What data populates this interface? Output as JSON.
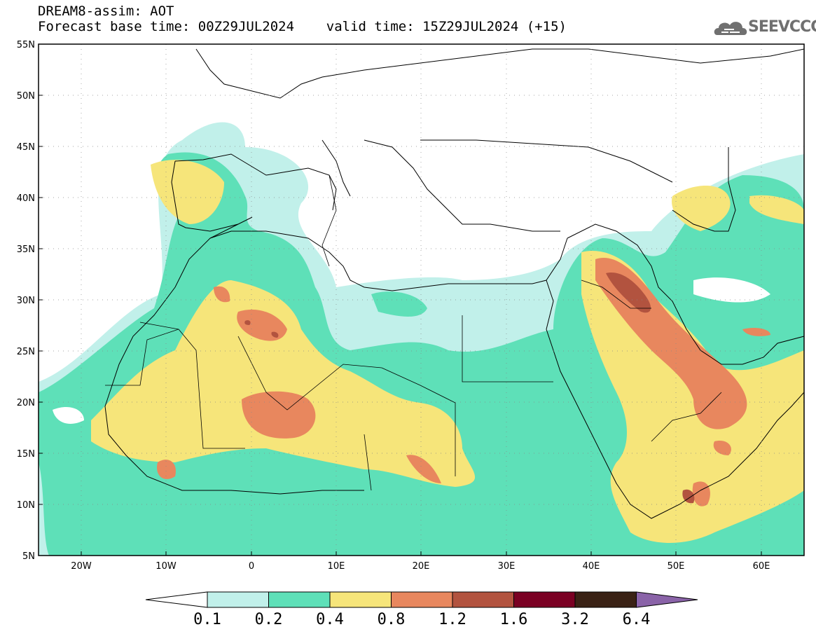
{
  "title": {
    "line1": "DREAM8-assim: AOT",
    "line2": "Forecast base time: 00Z29JUL2024    valid time: 15Z29JUL2024 (+15)"
  },
  "logo": {
    "text": "SEEVCCC",
    "icon": "cloud-icon"
  },
  "map": {
    "lon_range": [
      -25,
      65
    ],
    "lat_range": [
      5,
      55
    ],
    "lat_ticks": [
      "5N",
      "10N",
      "15N",
      "20N",
      "25N",
      "30N",
      "35N",
      "40N",
      "45N",
      "50N",
      "55N"
    ],
    "lon_ticks": [
      "20W",
      "10W",
      "0",
      "10E",
      "20E",
      "30E",
      "40E",
      "50E",
      "60E"
    ],
    "grid": true
  },
  "colorbar": {
    "labels": [
      "0.1",
      "0.2",
      "0.4",
      "0.8",
      "1.2",
      "1.6",
      "3.2",
      "6.4"
    ],
    "colors": [
      "#c1f0ea",
      "#5ee0b8",
      "#f6e57a",
      "#e8875e",
      "#b2533f",
      "#7a0023",
      "#3a2215",
      "#8a63a8"
    ],
    "under_color": "#ffffff"
  }
}
